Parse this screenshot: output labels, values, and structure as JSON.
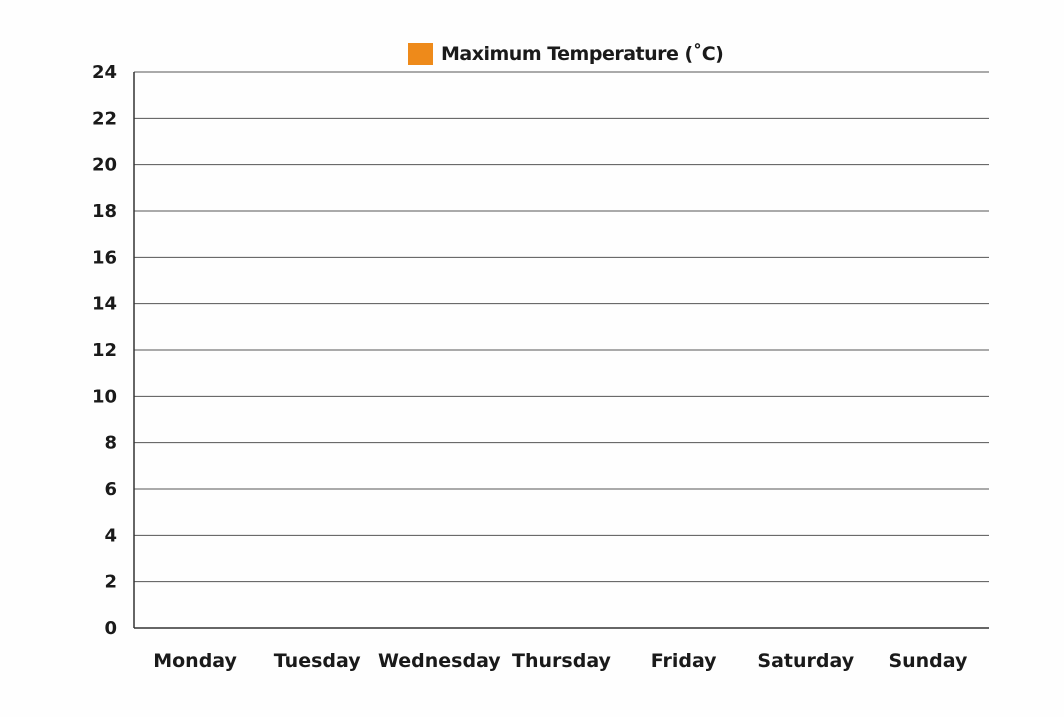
{
  "chart_data": {
    "type": "bar",
    "title": "",
    "xlabel": "",
    "ylabel": "",
    "categories": [
      "Monday",
      "Tuesday",
      "Wednesday",
      "Thursday",
      "Friday",
      "Saturday",
      "Sunday"
    ],
    "series": [
      {
        "name": "Maximum Temperature (˚C)",
        "color": "#ee8a1a",
        "values": [
          null,
          null,
          null,
          null,
          null,
          null,
          null
        ]
      }
    ],
    "ylim": [
      0,
      24
    ],
    "yticks": [
      0,
      2,
      4,
      6,
      8,
      10,
      12,
      14,
      16,
      18,
      20,
      22,
      24
    ],
    "grid": true,
    "legend_position": "top-center"
  }
}
